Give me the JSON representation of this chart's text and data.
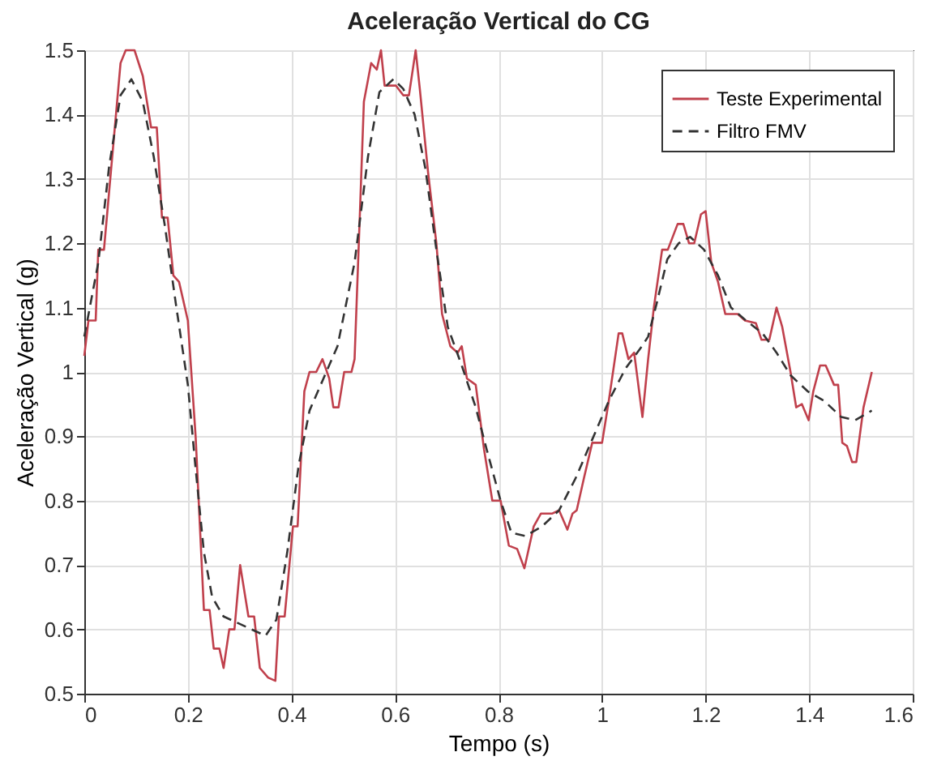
{
  "chart_data": {
    "type": "line",
    "title": "Aceleração Vertical do CG",
    "xlabel": "Tempo (s)",
    "ylabel": "Aceleração Vertical (g)",
    "xlim": [
      0,
      1.6
    ],
    "xticks": [
      0,
      0.2,
      0.4,
      0.6,
      0.8,
      1,
      1.2,
      1.4,
      1.6
    ],
    "ylim": [
      0.5,
      1.5
    ],
    "yticks": [
      0.5,
      0.6,
      0.7,
      0.8,
      0.9,
      1,
      1.1,
      1.2,
      1.3,
      1.4,
      1.5
    ],
    "grid": true,
    "legend": "top right",
    "marker": "none",
    "series": [
      {
        "name": "Teste Experimental",
        "color": "#c0404c",
        "line_style": "solid",
        "x": [
          0,
          0.008,
          0.022,
          0.027,
          0.038,
          0.07,
          0.08,
          0.097,
          0.113,
          0.129,
          0.14,
          0.15,
          0.161,
          0.172,
          0.183,
          0.2,
          0.215,
          0.231,
          0.242,
          0.25,
          0.261,
          0.269,
          0.28,
          0.29,
          0.301,
          0.317,
          0.328,
          0.339,
          0.355,
          0.369,
          0.376,
          0.387,
          0.403,
          0.412,
          0.425,
          0.435,
          0.448,
          0.46,
          0.473,
          0.481,
          0.491,
          0.502,
          0.516,
          0.522,
          0.532,
          0.54,
          0.554,
          0.565,
          0.573,
          0.58,
          0.602,
          0.616,
          0.627,
          0.64,
          0.648,
          0.664,
          0.68,
          0.691,
          0.707,
          0.721,
          0.729,
          0.739,
          0.756,
          0.772,
          0.788,
          0.804,
          0.82,
          0.836,
          0.85,
          0.868,
          0.882,
          0.904,
          0.917,
          0.933,
          0.943,
          0.951,
          0.965,
          0.981,
          1.0,
          1.013,
          1.032,
          1.039,
          1.051,
          1.062,
          1.078,
          1.089,
          1.1,
          1.116,
          1.127,
          1.146,
          1.157,
          1.168,
          1.178,
          1.191,
          1.2,
          1.211,
          1.224,
          1.238,
          1.262,
          1.276,
          1.297,
          1.308,
          1.323,
          1.337,
          1.348,
          1.364,
          1.375,
          1.386,
          1.399,
          1.408,
          1.421,
          1.432,
          1.448,
          1.456,
          1.464,
          1.473,
          1.483,
          1.491,
          1.505,
          1.521
        ],
        "values": [
          1.025,
          1.08,
          1.08,
          1.19,
          1.19,
          1.48,
          1.5,
          1.5,
          1.46,
          1.38,
          1.38,
          1.24,
          1.24,
          1.15,
          1.14,
          1.08,
          0.9,
          0.63,
          0.63,
          0.57,
          0.57,
          0.54,
          0.6,
          0.6,
          0.7,
          0.62,
          0.62,
          0.54,
          0.525,
          0.52,
          0.62,
          0.62,
          0.76,
          0.76,
          0.97,
          1.0,
          1.0,
          1.02,
          0.99,
          0.945,
          0.945,
          1.0,
          1.0,
          1.02,
          1.24,
          1.42,
          1.48,
          1.47,
          1.5,
          1.445,
          1.445,
          1.43,
          1.43,
          1.5,
          1.44,
          1.31,
          1.2,
          1.09,
          1.04,
          1.03,
          1.04,
          0.99,
          0.98,
          0.88,
          0.8,
          0.8,
          0.73,
          0.725,
          0.695,
          0.76,
          0.78,
          0.78,
          0.785,
          0.755,
          0.78,
          0.785,
          0.835,
          0.89,
          0.89,
          0.955,
          1.06,
          1.06,
          1.02,
          1.03,
          0.93,
          1.02,
          1.1,
          1.19,
          1.19,
          1.23,
          1.23,
          1.2,
          1.2,
          1.245,
          1.25,
          1.17,
          1.14,
          1.09,
          1.09,
          1.08,
          1.076,
          1.05,
          1.05,
          1.1,
          1.07,
          1.0,
          0.945,
          0.95,
          0.925,
          0.97,
          1.01,
          1.01,
          0.98,
          0.98,
          0.89,
          0.885,
          0.86,
          0.86,
          0.945,
          1.0
        ]
      },
      {
        "name": "Filtro FMV",
        "color": "#333333",
        "line_style": "dashed",
        "x": [
          0,
          0.027,
          0.048,
          0.07,
          0.091,
          0.113,
          0.134,
          0.156,
          0.177,
          0.2,
          0.215,
          0.231,
          0.247,
          0.269,
          0.296,
          0.323,
          0.35,
          0.371,
          0.392,
          0.414,
          0.435,
          0.462,
          0.489,
          0.522,
          0.548,
          0.57,
          0.597,
          0.616,
          0.638,
          0.659,
          0.68,
          0.702,
          0.729,
          0.756,
          0.777,
          0.804,
          0.825,
          0.852,
          0.884,
          0.917,
          0.949,
          0.981,
          1.013,
          1.045,
          1.077,
          1.089,
          1.105,
          1.126,
          1.148,
          1.17,
          1.197,
          1.224,
          1.249,
          1.278,
          1.31,
          1.337,
          1.364,
          1.397,
          1.429,
          1.462,
          1.489,
          1.521
        ],
        "values": [
          1.055,
          1.17,
          1.32,
          1.43,
          1.455,
          1.42,
          1.335,
          1.225,
          1.105,
          0.98,
          0.85,
          0.72,
          0.65,
          0.62,
          0.61,
          0.6,
          0.59,
          0.615,
          0.72,
          0.855,
          0.94,
          0.99,
          1.04,
          1.17,
          1.335,
          1.435,
          1.455,
          1.44,
          1.4,
          1.315,
          1.19,
          1.07,
          1.01,
          0.945,
          0.88,
          0.8,
          0.75,
          0.745,
          0.76,
          0.785,
          0.835,
          0.895,
          0.955,
          1.005,
          1.04,
          1.055,
          1.105,
          1.175,
          1.2,
          1.21,
          1.19,
          1.15,
          1.1,
          1.08,
          1.06,
          1.03,
          0.995,
          0.97,
          0.955,
          0.93,
          0.925,
          0.94
        ]
      }
    ]
  }
}
